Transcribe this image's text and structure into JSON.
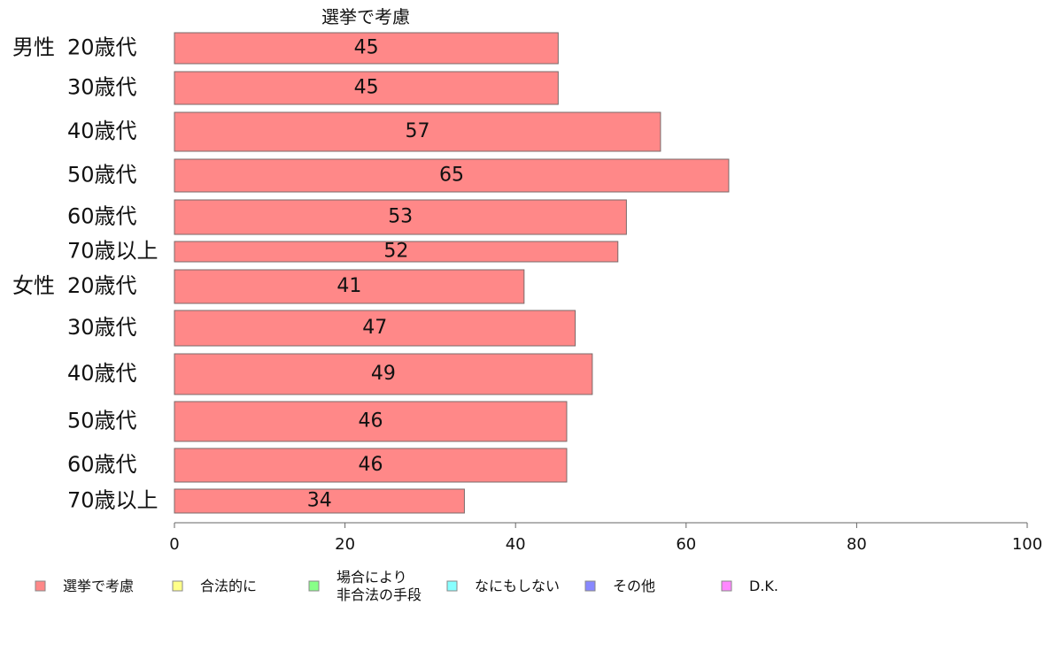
{
  "chart_data": {
    "type": "bar",
    "title": "選挙で考慮",
    "categories": [
      {
        "group": "男性",
        "age": "20歳代"
      },
      {
        "group": "",
        "age": "30歳代"
      },
      {
        "group": "",
        "age": "40歳代"
      },
      {
        "group": "",
        "age": "50歳代"
      },
      {
        "group": "",
        "age": "60歳代"
      },
      {
        "group": "",
        "age": "70歳以上"
      },
      {
        "group": "女性",
        "age": "20歳代"
      },
      {
        "group": "",
        "age": "30歳代"
      },
      {
        "group": "",
        "age": "40歳代"
      },
      {
        "group": "",
        "age": "50歳代"
      },
      {
        "group": "",
        "age": "60歳代"
      },
      {
        "group": "",
        "age": "70歳以上"
      }
    ],
    "series": [
      {
        "name": "選挙で考慮",
        "values": [
          45,
          45,
          57,
          65,
          53,
          52,
          41,
          47,
          49,
          46,
          46,
          34
        ]
      }
    ],
    "xlim": [
      0,
      100
    ],
    "ticks": [
      "0",
      "20",
      "40",
      "60",
      "80",
      "100"
    ],
    "grid": false,
    "legend_position": "bottom",
    "legend": [
      {
        "label": "選挙で考慮",
        "color": "#ff8888"
      },
      {
        "label": "合法的に",
        "color": "#ffff88"
      },
      {
        "label": "場合により\n非合法の手段",
        "color": "#88ff88"
      },
      {
        "label": "なにもしない",
        "color": "#88ffff"
      },
      {
        "label": "その他",
        "color": "#8888ff"
      },
      {
        "label": "D.K.",
        "color": "#ff88ff"
      }
    ]
  }
}
